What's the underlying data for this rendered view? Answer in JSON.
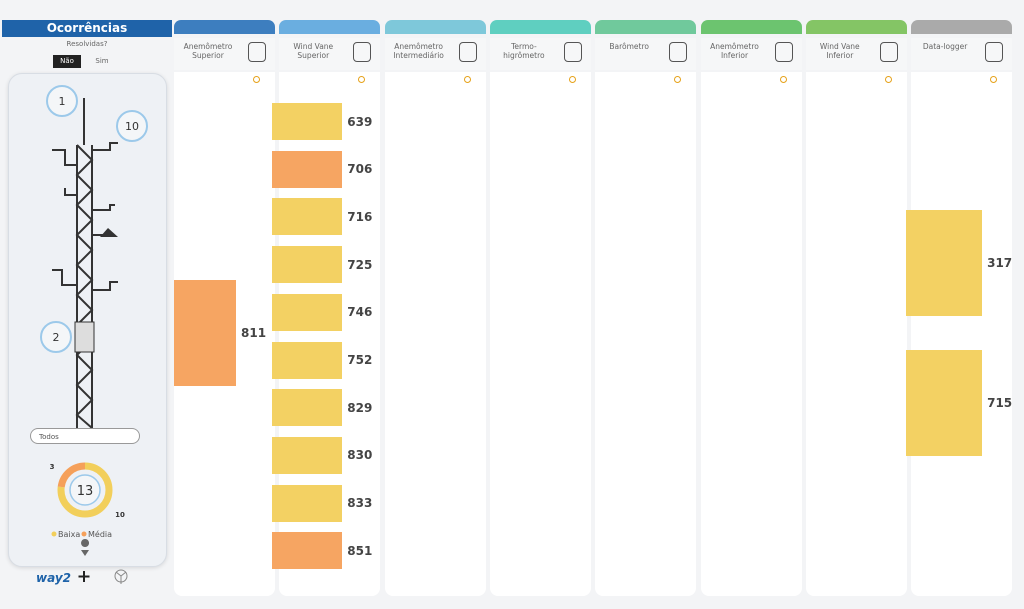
{
  "sidebar": {
    "title": "Ocorrências",
    "filter_label": "Resolvidas?",
    "toggle": [
      "Não",
      "Sim"
    ],
    "tower_badges": [
      1,
      10,
      2
    ],
    "dropdown": "Todos",
    "donut": {
      "total": 13,
      "segments": [
        {
          "name": "Baixa",
          "value": 10,
          "color": "#f2cf5b"
        },
        {
          "name": "Média",
          "value": 3,
          "color": "#f5a05a"
        }
      ]
    },
    "logo": "way2"
  },
  "columns": [
    {
      "name": "Anemômetro Superior",
      "color": "#3d7ebf",
      "items": [
        {
          "value": 811,
          "color": "#f5a05a"
        }
      ]
    },
    {
      "name": "Wind Vane Superior",
      "color": "#6aaee0",
      "items": [
        {
          "value": 639,
          "color": "#f2cf5b"
        },
        {
          "value": 706,
          "color": "#f5a05a"
        },
        {
          "value": 716,
          "color": "#f2cf5b"
        },
        {
          "value": 725,
          "color": "#f2cf5b"
        },
        {
          "value": 746,
          "color": "#f2cf5b"
        },
        {
          "value": 752,
          "color": "#f2cf5b"
        },
        {
          "value": 829,
          "color": "#f2cf5b"
        },
        {
          "value": 830,
          "color": "#f2cf5b"
        },
        {
          "value": 833,
          "color": "#f2cf5b"
        },
        {
          "value": 851,
          "color": "#f5a05a"
        }
      ]
    },
    {
      "name": "Anemômetro Intermediário",
      "color": "#7ec8da",
      "items": []
    },
    {
      "name": "Termo-higrômetro",
      "color": "#5fcfc0",
      "items": []
    },
    {
      "name": "Barômetro",
      "color": "#70c99c",
      "items": []
    },
    {
      "name": "Anemômetro Inferior",
      "color": "#6cc46f",
      "items": []
    },
    {
      "name": "Wind Vane Inferior",
      "color": "#84c565",
      "items": []
    },
    {
      "name": "Data-logger",
      "color": "#aaaaaa",
      "items": [
        {
          "value": 317,
          "color": "#f2cf5b"
        },
        {
          "value": 715,
          "color": "#f2cf5b"
        }
      ]
    }
  ]
}
